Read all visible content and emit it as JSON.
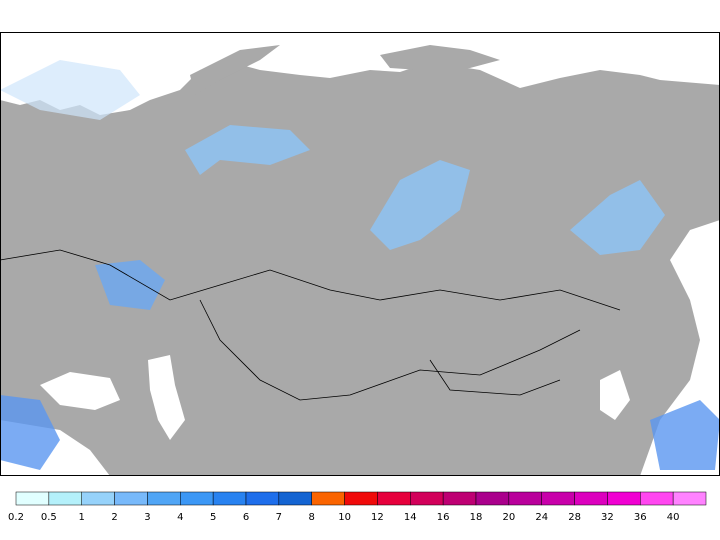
{
  "colorbar": {
    "labels": [
      0.2,
      0.5,
      1,
      2,
      3,
      4,
      5,
      6,
      7,
      8,
      10,
      12,
      14,
      16,
      18,
      20,
      24,
      28,
      32,
      36,
      40
    ],
    "colors": [
      "#e1ffff",
      "#b4f0fa",
      "#96d2fa",
      "#78b9fa",
      "#50a5f5",
      "#3c97f5",
      "#2882f0",
      "#1e6eeb",
      "#1464d2",
      "#fa6400",
      "#f00a0a",
      "#e6003c",
      "#d2005a",
      "#be0073",
      "#aa008c",
      "#b9009b",
      "#c800aa",
      "#dc00be",
      "#f000d2",
      "#ff46f0",
      "#ff82ff"
    ]
  }
}
